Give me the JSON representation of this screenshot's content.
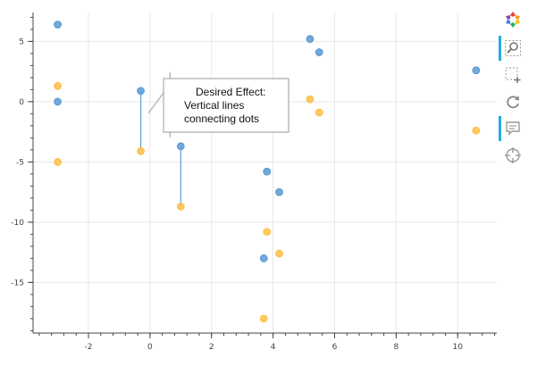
{
  "chart_data": {
    "type": "scatter",
    "title": "",
    "xlabel": "",
    "ylabel": "",
    "xlim": [
      -3.8,
      11.3
    ],
    "ylim": [
      -19.2,
      7.4
    ],
    "x_ticks": [
      -2,
      0,
      2,
      4,
      6,
      8,
      10
    ],
    "y_ticks": [
      5,
      0,
      -5,
      -10,
      -15
    ],
    "x_tick_labels": [
      "-2",
      "0",
      "2",
      "4",
      "6",
      "8",
      "10"
    ],
    "y_tick_labels": [
      "5",
      "0",
      "-5",
      "-10",
      "-15"
    ],
    "grid": true,
    "series": [
      {
        "name": "blue",
        "color": "#5a9bd5",
        "points": [
          {
            "x": -3.0,
            "y": 6.4
          },
          {
            "x": -3.0,
            "y": 0.0
          },
          {
            "x": -0.3,
            "y": 0.9
          },
          {
            "x": 1.0,
            "y": -3.7
          },
          {
            "x": 3.8,
            "y": -5.8
          },
          {
            "x": 4.2,
            "y": -7.5
          },
          {
            "x": 3.7,
            "y": -13.0
          },
          {
            "x": 5.2,
            "y": 5.2
          },
          {
            "x": 5.5,
            "y": 4.1
          },
          {
            "x": 10.6,
            "y": 2.6
          }
        ]
      },
      {
        "name": "orange",
        "color": "#ffbf47",
        "points": [
          {
            "x": -3.0,
            "y": 1.3
          },
          {
            "x": -3.0,
            "y": -5.0
          },
          {
            "x": -0.3,
            "y": -4.1
          },
          {
            "x": 1.0,
            "y": -8.7
          },
          {
            "x": 3.8,
            "y": -10.8
          },
          {
            "x": 4.2,
            "y": -12.6
          },
          {
            "x": 3.7,
            "y": -18.0
          },
          {
            "x": 5.2,
            "y": 0.2
          },
          {
            "x": 5.5,
            "y": -0.9
          },
          {
            "x": 10.6,
            "y": -2.4
          }
        ]
      }
    ],
    "segments": [
      {
        "x": -0.3,
        "y0": 0.9,
        "y1": -4.1
      },
      {
        "x": 1.0,
        "y0": -3.7,
        "y1": -8.7
      }
    ],
    "annotation": {
      "lines": [
        "Desired Effect:",
        "Vertical lines",
        "connecting dots"
      ],
      "callout_points": [
        {
          "x": -0.05,
          "y": -0.95
        },
        {
          "x": 0.65,
          "y": 1.45
        },
        {
          "x": 0.65,
          "y": 2.45
        },
        {
          "x": 0.65,
          "y": -2.95
        }
      ]
    }
  },
  "toolbar": {
    "tools": [
      {
        "icon": "bokeh-logo-icon",
        "label": "Bokeh",
        "active": false
      },
      {
        "icon": "box-zoom-icon",
        "label": "Box Zoom",
        "active": true
      },
      {
        "icon": "box-select-icon",
        "label": "Box Select",
        "active": false
      },
      {
        "icon": "reset-icon",
        "label": "Reset",
        "active": false
      },
      {
        "icon": "hover-icon",
        "label": "Hover",
        "active": true
      },
      {
        "icon": "crosshair-icon",
        "label": "Crosshair",
        "active": false
      }
    ]
  }
}
